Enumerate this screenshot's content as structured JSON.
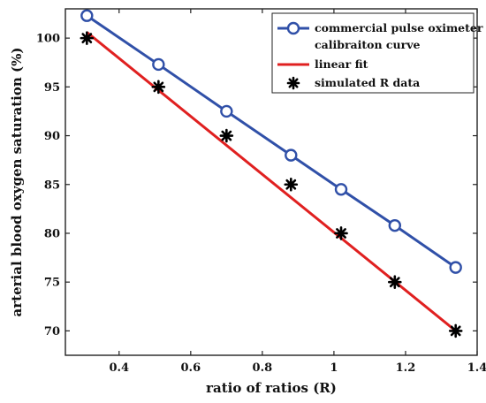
{
  "chart_data": {
    "type": "line",
    "xlabel": "ratio of ratios (R)",
    "ylabel": "arterial blood oxygen saturation (%)",
    "xlim": [
      0.25,
      1.4
    ],
    "ylim": [
      67.5,
      103
    ],
    "xticks": [
      0.4,
      0.6,
      0.8,
      1.0,
      1.2,
      1.4
    ],
    "xtick_labels": [
      "0.4",
      "0.6",
      "0.8",
      "1",
      "1.2",
      "1.4"
    ],
    "yticks": [
      70,
      75,
      80,
      85,
      90,
      95,
      100
    ],
    "ytick_labels": [
      "70",
      "75",
      "80",
      "85",
      "90",
      "95",
      "100"
    ],
    "grid": false,
    "legend_position": "top-right",
    "series": [
      {
        "name": "commercial pulse oximeter calibraiton curve",
        "legend_lines": [
          "commercial pulse oximeter",
          "calibraiton curve"
        ],
        "style": "line-circle",
        "color": "#3050a8",
        "x": [
          0.31,
          0.51,
          0.7,
          0.88,
          1.02,
          1.17,
          1.34
        ],
        "y": [
          102.3,
          97.3,
          92.5,
          88.0,
          84.5,
          80.8,
          76.5
        ]
      },
      {
        "name": "linear fit",
        "legend_lines": [
          "linear fit"
        ],
        "style": "line",
        "color": "#e02020",
        "x": [
          0.31,
          1.34
        ],
        "y": [
          100.6,
          70.0
        ]
      },
      {
        "name": "simulated R data",
        "legend_lines": [
          "simulated R data"
        ],
        "style": "marker-star",
        "color": "#000000",
        "x": [
          0.31,
          0.51,
          0.7,
          0.88,
          1.02,
          1.17,
          1.34
        ],
        "y": [
          100,
          95,
          90,
          85,
          80,
          75,
          70
        ]
      }
    ]
  }
}
